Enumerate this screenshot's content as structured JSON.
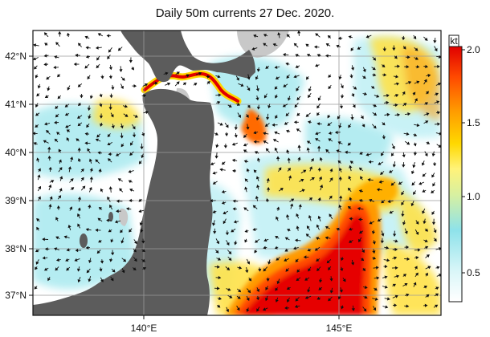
{
  "title": "Daily 50m currents 27 Dec. 2020.",
  "lat_labels": [
    "42°N",
    "41°N",
    "40°N",
    "39°N",
    "38°N",
    "37°N"
  ],
  "lon_labels": [
    "140°E",
    "145°E"
  ],
  "colorbar": {
    "unit": "kt",
    "ticks": [
      "2.0",
      "1.5",
      "1.0",
      "0.5"
    ],
    "colors": [
      "#ffffff",
      "#bff0f5",
      "#7fdde6",
      "#fff37a",
      "#ffd800",
      "#ff9a00",
      "#ff4a00",
      "#e00000"
    ]
  },
  "colors": {
    "land": "#5c5c5c",
    "shelf": "#c8c8c8",
    "grid": "#9a9a9a"
  }
}
